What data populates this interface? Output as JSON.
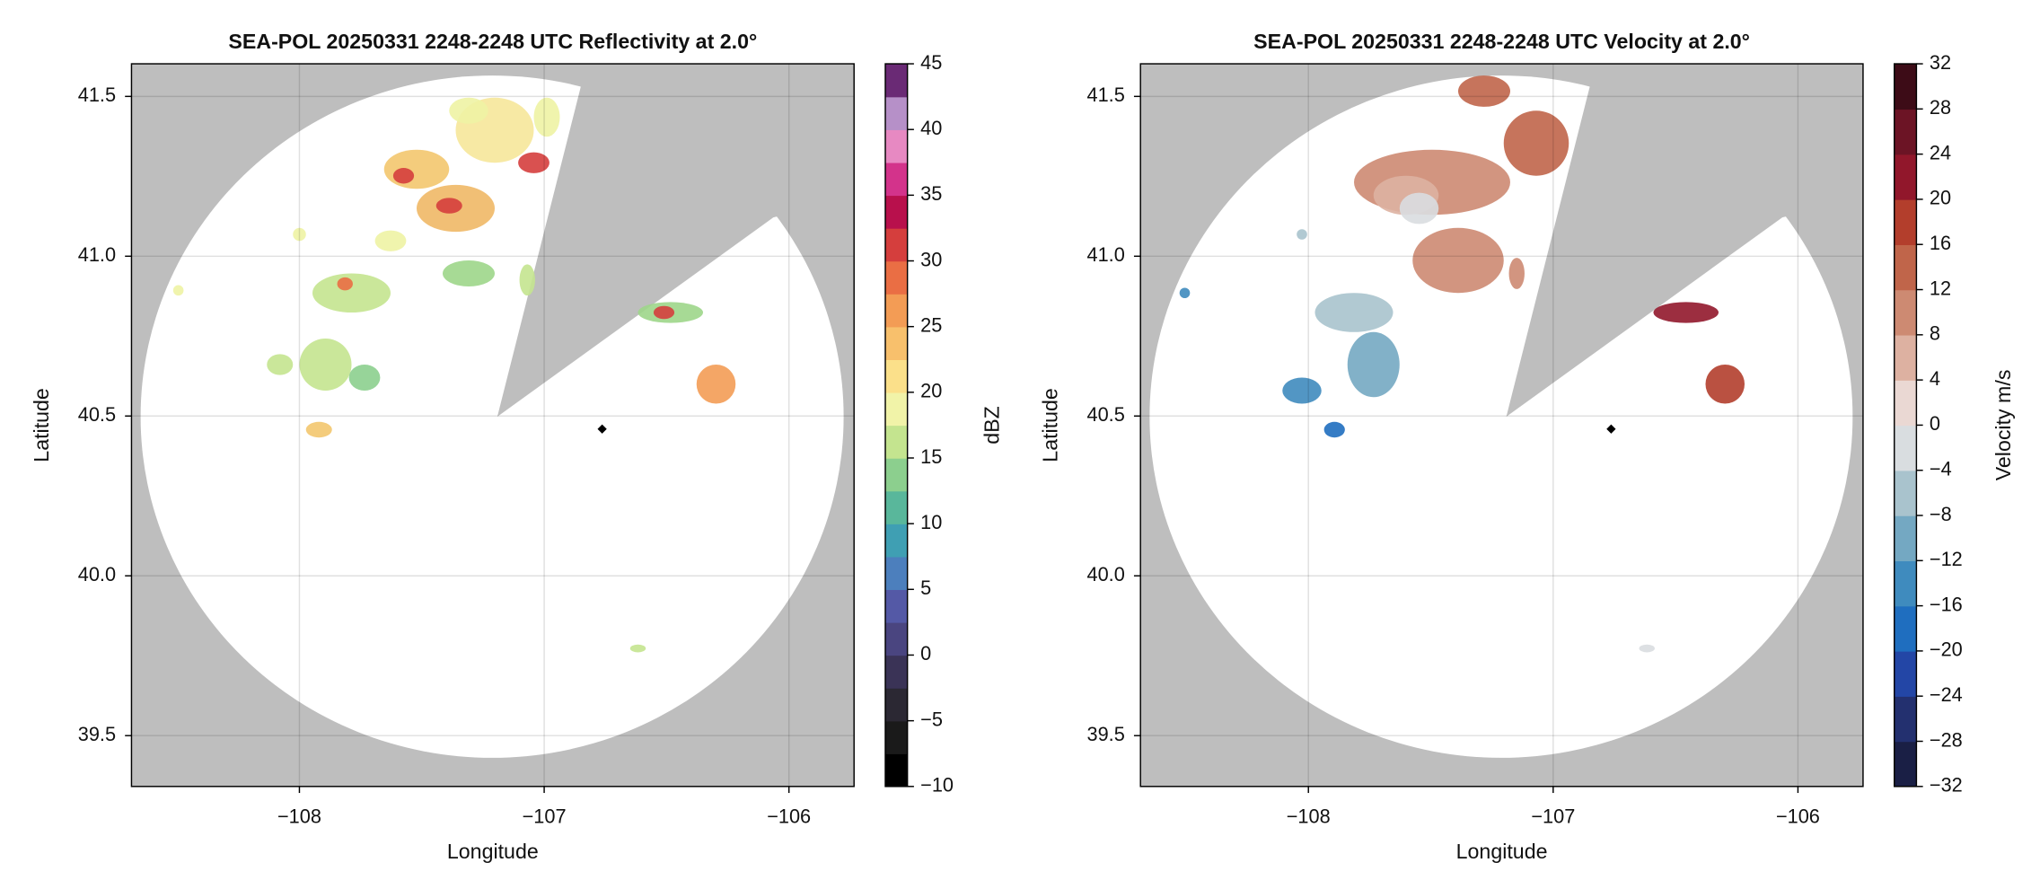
{
  "chart_data": [
    {
      "type": "ppi",
      "title": "SEA-POL 20250331 2248-2248 UTC Reflectivity at 2.0°",
      "xlabel": "Longitude",
      "ylabel": "Latitude",
      "xlim": [
        -108.686,
        -105.734
      ],
      "ylim": [
        39.341,
        41.602
      ],
      "xticks": [
        {
          "value": -108,
          "label": "−108"
        },
        {
          "value": -107,
          "label": "−107"
        },
        {
          "value": -106,
          "label": "−106"
        }
      ],
      "yticks": [
        39.5,
        {
          "value": 40,
          "label": "40.0"
        },
        40.5,
        {
          "value": 41,
          "label": "41.0"
        },
        41.5
      ],
      "grid": true,
      "colorbar": {
        "label": "dBZ",
        "clim": [
          -10,
          45
        ],
        "ticks": [
          {
            "value": -10,
            "label": "−10"
          },
          {
            "value": -5,
            "label": "−5"
          },
          0,
          5,
          10,
          15,
          20,
          25,
          30,
          35,
          40,
          45
        ],
        "colors": [
          "#000000",
          "#1a1a1a",
          "#2b2833",
          "#3a3356",
          "#4a4580",
          "#5459a6",
          "#4c7fbd",
          "#3f9fb3",
          "#59b79b",
          "#8ccf8e",
          "#c4e48f",
          "#f1f3a8",
          "#fbe08a",
          "#f8c06c",
          "#f39c55",
          "#ea6e44",
          "#d53e3d",
          "#b8104c",
          "#d3338b",
          "#e789c2",
          "#b690c8",
          "#6a2a75"
        ]
      }
    },
    {
      "type": "ppi",
      "title": "SEA-POL 20250331 2248-2248 UTC Velocity at 2.0°",
      "xlabel": "Longitude",
      "ylabel": "Latitude",
      "xlim": [
        -108.686,
        -105.734
      ],
      "ylim": [
        39.341,
        41.602
      ],
      "xticks": [
        {
          "value": -108,
          "label": "−108"
        },
        {
          "value": -107,
          "label": "−107"
        },
        {
          "value": -106,
          "label": "−106"
        }
      ],
      "yticks": [
        39.5,
        {
          "value": 40,
          "label": "40.0"
        },
        40.5,
        {
          "value": 41,
          "label": "41.0"
        },
        41.5
      ],
      "grid": true,
      "colorbar": {
        "label": "Velocity m/s",
        "clim": [
          -32,
          32
        ],
        "ticks": [
          {
            "value": -32,
            "label": "−32"
          },
          {
            "value": -28,
            "label": "−28"
          },
          {
            "value": -24,
            "label": "−24"
          },
          {
            "value": -20,
            "label": "−20"
          },
          {
            "value": -16,
            "label": "−16"
          },
          {
            "value": -12,
            "label": "−12"
          },
          {
            "value": -8,
            "label": "−8"
          },
          {
            "value": -4,
            "label": "−4"
          },
          0,
          4,
          8,
          12,
          16,
          20,
          24,
          28,
          32
        ],
        "colors": [
          "#1a1f45",
          "#23306f",
          "#2346a6",
          "#1f6ebf",
          "#3f8bbe",
          "#74a8c2",
          "#a9c3cd",
          "#d9dde0",
          "#ead8d3",
          "#ddb1a1",
          "#cd8a72",
          "#c0654a",
          "#b33e2c",
          "#91172b",
          "#6c1425",
          "#3d0c17"
        ]
      }
    }
  ]
}
